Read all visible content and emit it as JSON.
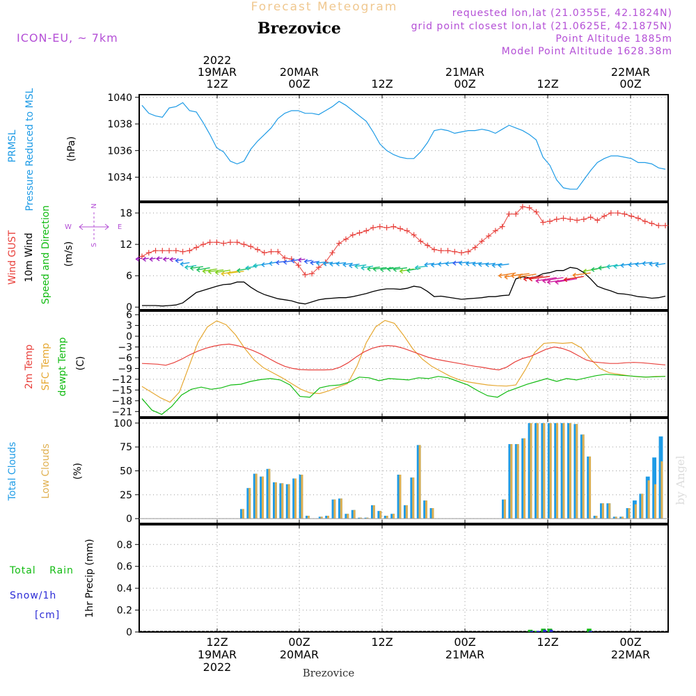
{
  "header": {
    "product": "Forecast Meteogram",
    "location": "Brezovice",
    "model": "ICON-EU, ~ 7km",
    "requested": "requested lon,lat (21.0355E, 42.1824N)",
    "gridpoint": "grid point closest lon,lat (21.0625E, 42.1875N)",
    "point_altitude": "Point Altitude 1885m",
    "model_altitude": "Model Point Altitude 1628.38m"
  },
  "footer": {
    "location": "Brezovice",
    "watermark": "by Angel"
  },
  "time_axis": {
    "start": "2022-03-19 03Z",
    "end": "2022-03-22 06Z",
    "ticks": [
      {
        "label_top": [
          "2022",
          "19MAR",
          "12Z"
        ],
        "label_bottom": [
          "12Z",
          "19MAR",
          "2022"
        ]
      },
      {
        "label_top": [
          "20MAR",
          "00Z"
        ],
        "label_bottom": [
          "00Z",
          "20MAR"
        ]
      },
      {
        "label_top": [
          "12Z"
        ],
        "label_bottom": [
          "12Z"
        ]
      },
      {
        "label_top": [
          "21MAR",
          "00Z"
        ],
        "label_bottom": [
          "00Z",
          "21MAR"
        ]
      },
      {
        "label_top": [
          "12Z"
        ],
        "label_bottom": [
          "12Z"
        ]
      },
      {
        "label_top": [
          "22MAR",
          "00Z"
        ],
        "label_bottom": [
          "00Z",
          "22MAR"
        ]
      }
    ]
  },
  "colors": {
    "pressure": "#1e9be6",
    "gust": "#e8413c",
    "wind10m": "#000000",
    "wind_dir": "#11bb11",
    "compass": "#b44fd6",
    "t2m": "#e8413c",
    "sfc": "#e6a832",
    "dewpt": "#11bb11",
    "total_clouds": "#1e9be6",
    "low_clouds": "#e0b050",
    "rain": "#11bb11",
    "snow": "#2b2bd6",
    "header_purple": "#b44fd6",
    "header_orange": "#f0c890",
    "grid": "#999999"
  },
  "compass": {
    "n": "N",
    "s": "S",
    "e": "E",
    "w": "W"
  },
  "chart_data": [
    {
      "type": "line",
      "ylabel": [
        "PRMSL",
        "Pressure Reduced to MSL"
      ],
      "unit": "(hPa)",
      "ylim": [
        1032.2,
        1040.2
      ],
      "yticks": [
        1034,
        1036,
        1038,
        1040
      ],
      "grid": true,
      "series": [
        {
          "name": "PRMSL",
          "values": [
            1039.4,
            1038.8,
            1038.6,
            1038.5,
            1039.2,
            1039.3,
            1039.6,
            1039.0,
            1038.9,
            1038.1,
            1037.2,
            1036.2,
            1035.9,
            1035.2,
            1035.0,
            1035.2,
            1036.1,
            1036.7,
            1037.2,
            1037.7,
            1038.4,
            1038.8,
            1039.0,
            1039.0,
            1038.8,
            1038.8,
            1038.7,
            1039.0,
            1039.3,
            1039.7,
            1039.4,
            1039.0,
            1038.6,
            1038.2,
            1037.4,
            1036.5,
            1036.0,
            1035.7,
            1035.5,
            1035.4,
            1035.4,
            1035.9,
            1036.6,
            1037.5,
            1037.6,
            1037.5,
            1037.3,
            1037.4,
            1037.5,
            1037.5,
            1037.6,
            1037.5,
            1037.3,
            1037.6,
            1037.9,
            1037.7,
            1037.5,
            1037.2,
            1036.8,
            1035.5,
            1034.9,
            1033.8,
            1033.2,
            1033.1,
            1033.1,
            1033.8,
            1034.5,
            1035.1,
            1035.4,
            1035.6,
            1035.6,
            1035.5,
            1035.4,
            1035.1,
            1035.1,
            1035.0,
            1034.7,
            1034.6
          ]
        }
      ]
    },
    {
      "type": "line",
      "ylabel": [
        "Wind GUST",
        "10m Wind",
        "Speed and Direction"
      ],
      "unit": "(m/s)",
      "ylim": [
        -0.5,
        20
      ],
      "yticks": [
        0,
        6,
        12,
        18
      ],
      "grid": true,
      "series": [
        {
          "name": "Wind GUST",
          "values": [
            9.7,
            10.4,
            10.8,
            10.8,
            10.8,
            10.8,
            10.6,
            10.8,
            11.4,
            12.0,
            12.4,
            12.4,
            12.2,
            12.4,
            12.4,
            12.0,
            11.6,
            11.0,
            10.4,
            10.6,
            10.6,
            9.4,
            9.2,
            8.0,
            6.2,
            6.4,
            7.6,
            8.6,
            10.4,
            12.2,
            13.0,
            13.8,
            14.2,
            14.6,
            15.2,
            15.4,
            15.2,
            15.4,
            15.0,
            14.6,
            13.8,
            12.6,
            11.8,
            11.0,
            10.8,
            10.8,
            10.6,
            10.4,
            10.6,
            11.4,
            12.6,
            13.6,
            14.6,
            15.4,
            17.8,
            17.8,
            19.2,
            19.0,
            18.2,
            16.2,
            16.4,
            16.8,
            17.0,
            16.8,
            16.6,
            16.8,
            17.2,
            16.6,
            17.4,
            18.0,
            18.0,
            17.8,
            17.4,
            17.0,
            16.4,
            16.0,
            15.6,
            15.6
          ]
        },
        {
          "name": "10m Wind",
          "values": [
            0.3,
            0.3,
            0.3,
            0.2,
            0.3,
            0.4,
            0.8,
            1.8,
            2.8,
            3.2,
            3.6,
            4.0,
            4.3,
            4.4,
            4.8,
            4.8,
            3.8,
            3.0,
            2.4,
            2.0,
            1.6,
            1.4,
            1.2,
            0.8,
            0.6,
            1.0,
            1.4,
            1.6,
            1.7,
            1.8,
            1.8,
            2.0,
            2.3,
            2.6,
            3.0,
            3.3,
            3.5,
            3.5,
            3.4,
            3.6,
            4.0,
            3.8,
            3.0,
            2.0,
            2.1,
            1.9,
            1.7,
            1.5,
            1.6,
            1.7,
            1.8,
            2.0,
            2.0,
            2.2,
            2.3,
            5.4,
            5.8,
            5.6,
            5.8,
            6.4,
            6.6,
            7.0,
            7.0,
            7.6,
            7.4,
            6.6,
            5.4,
            4.0,
            3.5,
            3.1,
            2.6,
            2.5,
            2.3,
            2.0,
            1.9,
            1.7,
            1.8,
            2.1
          ]
        }
      ]
    },
    {
      "type": "line",
      "ylabel": [
        "2m Temp",
        "SFC Temp",
        "dewpt Temp"
      ],
      "unit": "(C)",
      "ylim": [
        -22.5,
        7
      ],
      "yticks": [
        6,
        3,
        0,
        -3,
        -6,
        -9,
        -12,
        -15,
        -18,
        -21
      ],
      "grid": true,
      "series": [
        {
          "name": "2m Temp",
          "values": [
            -7.6,
            -7.7,
            -7.8,
            -8.1,
            -7.4,
            -6.4,
            -5.2,
            -4.2,
            -3.4,
            -2.8,
            -2.4,
            -2.2,
            -2.6,
            -3.2,
            -4.0,
            -5.0,
            -6.2,
            -7.4,
            -8.4,
            -9.0,
            -9.3,
            -9.4,
            -9.4,
            -9.4,
            -9.3,
            -8.6,
            -7.4,
            -5.8,
            -4.4,
            -3.4,
            -2.8,
            -2.6,
            -2.8,
            -3.4,
            -4.2,
            -5.0,
            -5.8,
            -6.4,
            -6.8,
            -7.2,
            -7.6,
            -8.0,
            -8.4,
            -8.7,
            -9.1,
            -9.4,
            -8.6,
            -7.2,
            -6.2,
            -5.6,
            -4.6,
            -3.6,
            -3.0,
            -3.4,
            -4.2,
            -5.4,
            -6.6,
            -7.2,
            -7.4,
            -7.6,
            -7.6,
            -7.4,
            -7.3,
            -7.4,
            -7.6,
            -7.8,
            -8.0
          ]
        },
        {
          "name": "SFC Temp",
          "values": [
            -14.0,
            -15.6,
            -17.2,
            -18.4,
            -15.6,
            -8.6,
            -1.6,
            2.6,
            4.3,
            3.2,
            0.4,
            -3.4,
            -6.6,
            -8.8,
            -10.2,
            -11.6,
            -13.2,
            -14.8,
            -15.8,
            -16.0,
            -15.2,
            -14.2,
            -13.2,
            -8.4,
            -1.8,
            2.6,
            4.4,
            3.6,
            0.2,
            -3.6,
            -6.4,
            -8.4,
            -9.8,
            -11.2,
            -12.2,
            -12.8,
            -13.2,
            -13.6,
            -13.8,
            -13.9,
            -13.6,
            -9.4,
            -4.6,
            -2.0,
            -1.8,
            -2.0,
            -1.8,
            -3.2,
            -6.4,
            -9.0,
            -10.2,
            -10.6,
            -11.0,
            -11.3,
            -11.4,
            -11.2,
            -11.2
          ]
        },
        {
          "name": "dewpt Temp",
          "values": [
            -17.4,
            -20.6,
            -21.8,
            -19.6,
            -16.4,
            -14.8,
            -14.2,
            -14.8,
            -14.4,
            -13.6,
            -13.4,
            -12.6,
            -12.1,
            -11.8,
            -12.2,
            -13.6,
            -16.8,
            -17.0,
            -14.4,
            -13.8,
            -13.6,
            -12.8,
            -11.4,
            -11.6,
            -12.4,
            -11.8,
            -12.0,
            -12.2,
            -11.6,
            -11.8,
            -11.2,
            -11.6,
            -12.6,
            -13.6,
            -15.2,
            -16.6,
            -17.0,
            -15.4,
            -14.4,
            -13.4,
            -12.6,
            -11.8,
            -12.6,
            -11.8,
            -12.2,
            -11.6,
            -11.0,
            -10.6,
            -10.8,
            -11.0,
            -11.2,
            -11.4,
            -11.3,
            -11.2
          ]
        }
      ]
    },
    {
      "type": "bar",
      "ylabel": [
        "Total Clouds",
        "Low Clouds"
      ],
      "unit": "(%)",
      "ylim": [
        -5,
        105
      ],
      "yticks": [
        0,
        25,
        50,
        75,
        100
      ],
      "grid": true,
      "series": [
        {
          "name": "Total Clouds",
          "values": [
            0,
            0,
            0,
            0,
            0,
            0,
            0,
            0,
            0,
            0,
            0,
            0,
            0,
            0,
            0,
            10,
            32,
            47,
            44,
            52,
            38,
            37,
            36,
            42,
            46,
            3,
            0,
            2,
            3,
            20,
            21,
            5,
            9,
            1,
            1,
            14,
            8,
            3,
            5,
            46,
            14,
            43,
            77,
            19,
            11,
            0,
            0,
            0,
            0,
            0,
            0,
            0,
            0,
            0,
            0,
            20,
            78,
            78,
            84,
            100,
            100,
            100,
            100,
            100,
            100,
            100,
            99,
            88,
            65,
            3,
            16,
            16,
            2,
            2,
            11,
            19,
            26,
            44,
            64,
            86
          ]
        },
        {
          "name": "Low Clouds",
          "values": [
            0,
            0,
            0,
            0,
            0,
            0,
            0,
            0,
            0,
            0,
            0,
            0,
            0,
            0,
            0,
            10,
            32,
            47,
            44,
            52,
            38,
            37,
            36,
            42,
            46,
            3,
            0,
            2,
            3,
            20,
            21,
            5,
            9,
            1,
            1,
            14,
            8,
            3,
            5,
            46,
            14,
            43,
            77,
            19,
            11,
            0,
            0,
            0,
            0,
            0,
            0,
            0,
            0,
            0,
            0,
            20,
            78,
            78,
            84,
            100,
            100,
            100,
            100,
            100,
            100,
            100,
            99,
            88,
            65,
            3,
            16,
            16,
            2,
            2,
            11,
            15,
            26,
            40,
            36,
            60
          ]
        }
      ]
    },
    {
      "type": "bar",
      "ylabel": [
        "Total Rain",
        "Snow/1h",
        "[cm]",
        "1hr Precip (mm)"
      ],
      "ylim": [
        0,
        0.98
      ],
      "yticks": [
        0,
        0.2,
        0.4,
        0.6,
        0.8
      ],
      "ytick_labels": [
        "0",
        "0.2",
        "0.4",
        "0.6",
        "0.8"
      ],
      "grid": true,
      "series": [
        {
          "name": "Total Rain",
          "values": [
            0,
            0,
            0,
            0,
            0,
            0,
            0,
            0,
            0,
            0,
            0,
            0,
            0,
            0,
            0,
            0,
            0,
            0,
            0,
            0,
            0,
            0,
            0,
            0,
            0,
            0,
            0,
            0,
            0,
            0,
            0,
            0,
            0,
            0,
            0,
            0,
            0,
            0,
            0,
            0,
            0,
            0,
            0,
            0,
            0,
            0,
            0,
            0,
            0,
            0,
            0,
            0,
            0,
            0,
            0,
            0,
            0,
            0,
            0,
            0.02,
            0.01,
            0.03,
            0.03,
            0,
            0,
            0,
            0,
            0,
            0.03,
            0,
            0,
            0,
            0,
            0,
            0,
            0,
            0,
            0,
            0,
            0
          ]
        },
        {
          "name": "Snow/1h",
          "values": [
            0,
            0,
            0,
            0,
            0,
            0,
            0,
            0,
            0,
            0,
            0,
            0,
            0,
            0,
            0,
            0,
            0,
            0,
            0,
            0,
            0,
            0,
            0,
            0,
            0,
            0,
            0,
            0,
            0,
            0,
            0,
            0,
            0,
            0,
            0,
            0,
            0,
            0,
            0,
            0,
            0,
            0,
            0,
            0,
            0,
            0,
            0,
            0,
            0,
            0,
            0,
            0,
            0,
            0,
            0,
            0,
            0,
            0,
            0,
            0.01,
            0.01,
            0.02,
            0.02,
            0,
            0,
            0,
            0,
            0,
            0.01,
            0,
            0,
            0,
            0,
            0,
            0,
            0,
            0,
            0,
            0,
            0
          ]
        }
      ]
    }
  ]
}
